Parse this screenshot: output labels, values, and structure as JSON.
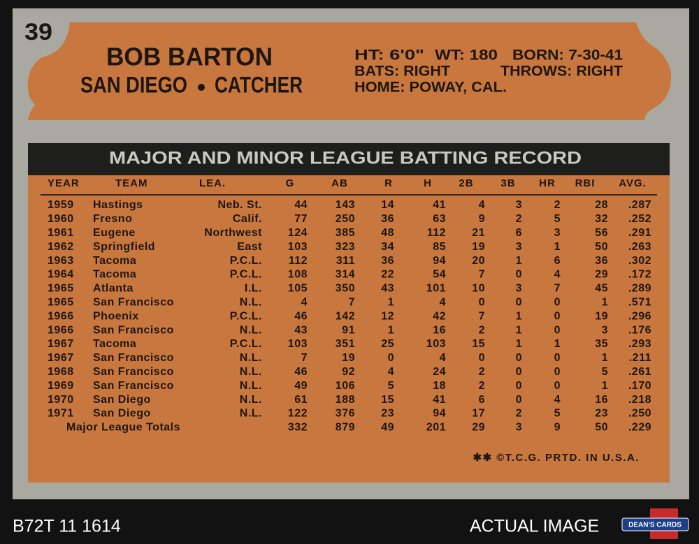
{
  "card": {
    "number": "39",
    "name": "BOB BARTON",
    "team": "SAN DIEGO",
    "position": "CATCHER",
    "bio": {
      "height": "HT: 6'0\"",
      "weight": "WT: 180",
      "born": "BORN: 7-30-41",
      "bats": "BATS: RIGHT",
      "throws": "THROWS: RIGHT",
      "home": "HOME: POWAY, CAL."
    }
  },
  "table": {
    "title": "MAJOR AND MINOR LEAGUE BATTING RECORD",
    "columns": [
      "YEAR",
      "TEAM",
      "LEA.",
      "G",
      "AB",
      "R",
      "H",
      "2B",
      "3B",
      "HR",
      "RBI",
      "AVG."
    ],
    "rows": [
      [
        "1959",
        "Hastings",
        "Neb. St.",
        "44",
        "143",
        "14",
        "41",
        "4",
        "3",
        "2",
        "28",
        ".287"
      ],
      [
        "1960",
        "Fresno",
        "Calif.",
        "77",
        "250",
        "36",
        "63",
        "9",
        "2",
        "5",
        "32",
        ".252"
      ],
      [
        "1961",
        "Eugene",
        "Northwest",
        "124",
        "385",
        "48",
        "112",
        "21",
        "6",
        "3",
        "56",
        ".291"
      ],
      [
        "1962",
        "Springfield",
        "East",
        "103",
        "323",
        "34",
        "85",
        "19",
        "3",
        "1",
        "50",
        ".263"
      ],
      [
        "1963",
        "Tacoma",
        "P.C.L.",
        "112",
        "311",
        "36",
        "94",
        "20",
        "1",
        "6",
        "36",
        ".302"
      ],
      [
        "1964",
        "Tacoma",
        "P.C.L.",
        "108",
        "314",
        "22",
        "54",
        "7",
        "0",
        "4",
        "29",
        ".172"
      ],
      [
        "1965",
        "Atlanta",
        "I.L.",
        "105",
        "350",
        "43",
        "101",
        "10",
        "3",
        "7",
        "45",
        ".289"
      ],
      [
        "1965",
        "San Francisco",
        "N.L.",
        "4",
        "7",
        "1",
        "4",
        "0",
        "0",
        "0",
        "1",
        ".571"
      ],
      [
        "1966",
        "Phoenix",
        "P.C.L.",
        "46",
        "142",
        "12",
        "42",
        "7",
        "1",
        "0",
        "19",
        ".296"
      ],
      [
        "1966",
        "San Francisco",
        "N.L.",
        "43",
        "91",
        "1",
        "16",
        "2",
        "1",
        "0",
        "3",
        ".176"
      ],
      [
        "1967",
        "Tacoma",
        "P.C.L.",
        "103",
        "351",
        "25",
        "103",
        "15",
        "1",
        "1",
        "35",
        ".293"
      ],
      [
        "1967",
        "San Francisco",
        "N.L.",
        "7",
        "19",
        "0",
        "4",
        "0",
        "0",
        "0",
        "1",
        ".211"
      ],
      [
        "1968",
        "San Francisco",
        "N.L.",
        "46",
        "92",
        "4",
        "24",
        "2",
        "0",
        "0",
        "5",
        ".261"
      ],
      [
        "1969",
        "San Francisco",
        "N.L.",
        "49",
        "106",
        "5",
        "18",
        "2",
        "0",
        "0",
        "1",
        ".170"
      ],
      [
        "1970",
        "San Diego",
        "N.L.",
        "61",
        "188",
        "15",
        "41",
        "6",
        "0",
        "4",
        "16",
        ".218"
      ],
      [
        "1971",
        "San Diego",
        "N.L.",
        "122",
        "376",
        "23",
        "94",
        "17",
        "2",
        "5",
        "23",
        ".250"
      ]
    ],
    "totals": {
      "label": "Major League Totals",
      "values": [
        "332",
        "879",
        "49",
        "201",
        "29",
        "3",
        "9",
        "50",
        ".229"
      ]
    }
  },
  "footer": "✱✱ ©T.C.G. PRTD. IN U.S.A.",
  "scan": {
    "code": "B72T 11 1614",
    "label": "ACTUAL IMAGE",
    "logo": "DEAN'S CARDS"
  }
}
